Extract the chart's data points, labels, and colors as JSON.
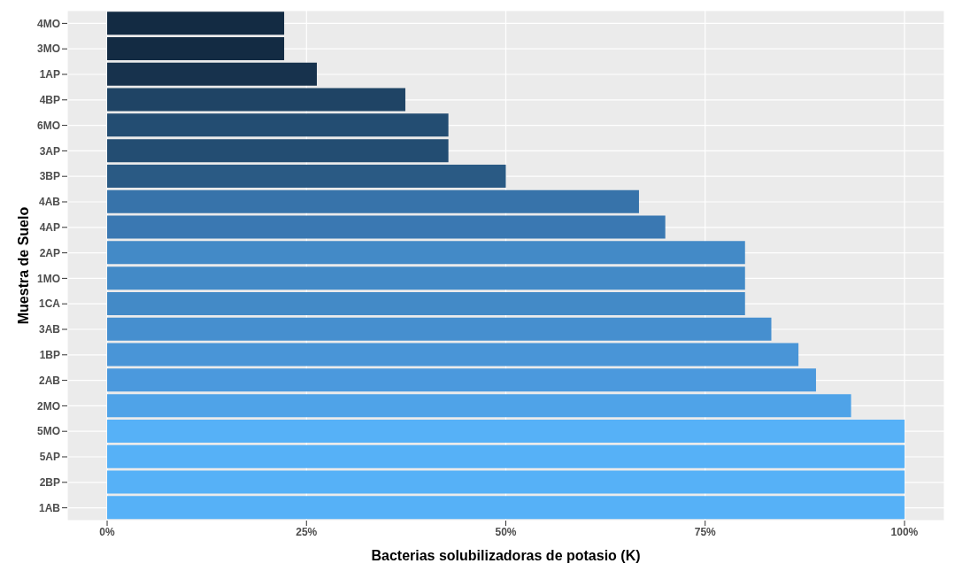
{
  "chart_data": {
    "type": "bar",
    "orientation": "horizontal",
    "xlabel": "Bacterias solubilizadoras de potasio (K)",
    "ylabel": "Muestra de Suelo",
    "categories": [
      "4MO",
      "3MO",
      "1AP",
      "4BP",
      "6MO",
      "3AP",
      "3BP",
      "4AB",
      "4AP",
      "2AP",
      "1MO",
      "1CA",
      "3AB",
      "1BP",
      "2AB",
      "2MO",
      "5MO",
      "5AP",
      "2BP",
      "1AB"
    ],
    "values": [
      22.2,
      22.2,
      26.3,
      37.4,
      42.8,
      42.8,
      50,
      66.7,
      70,
      80,
      80,
      80,
      83.3,
      86.7,
      88.9,
      93.3,
      100,
      100,
      100,
      100
    ],
    "colors": [
      "#132b43",
      "#132b43",
      "#17324d",
      "#1f4465",
      "#234d72",
      "#234d72",
      "#2a5a84",
      "#3773aa",
      "#3a78b2",
      "#438ac7",
      "#438ac7",
      "#438ac7",
      "#468fcf",
      "#4995d7",
      "#4b99dd",
      "#4fa3e8",
      "#56b1f7",
      "#56b1f7",
      "#56b1f7",
      "#56b1f7"
    ],
    "xlim": [
      -5,
      105
    ],
    "xticks": [
      {
        "value": 0,
        "label": "0%"
      },
      {
        "value": 25,
        "label": "25%"
      },
      {
        "value": 50,
        "label": "50%"
      },
      {
        "value": 75,
        "label": "75%"
      },
      {
        "value": 100,
        "label": "100%"
      }
    ],
    "grid": true
  }
}
